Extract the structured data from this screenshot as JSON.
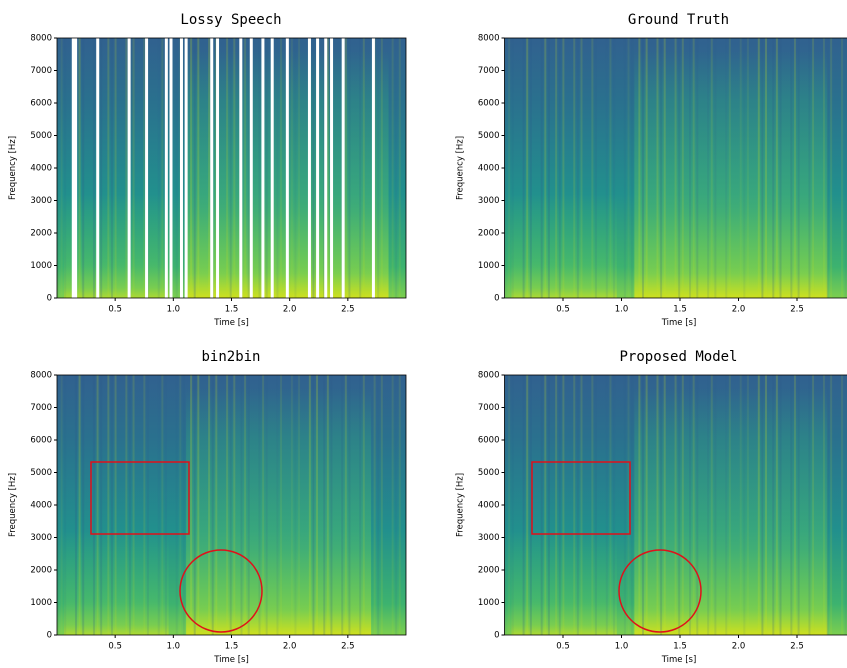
{
  "chart_data": [
    {
      "type": "spectrogram",
      "title": "Lossy Speech",
      "x_label": "Time [s]",
      "y_label": "Frequency [Hz]",
      "xlim": [
        0,
        3
      ],
      "ylim": [
        0,
        8000
      ],
      "xticks": [
        0.5,
        {
          "value": 1,
          "label": "1.0"
        },
        1.5,
        {
          "value": 2,
          "label": "2.0"
        },
        2.5
      ],
      "yticks": [
        0,
        1000,
        2000,
        3000,
        4000,
        5000,
        6000,
        7000,
        8000
      ],
      "lost_frames": [
        0.14,
        0.16,
        0.35,
        0.62,
        0.77,
        0.94,
        0.98,
        1.07,
        1.11,
        1.33,
        1.38,
        1.58,
        1.67,
        1.77,
        1.85,
        1.98,
        2.17,
        2.24,
        2.31,
        2.36,
        2.46,
        2.72
      ]
    },
    {
      "type": "spectrogram",
      "title": "Ground Truth",
      "x_label": "Time [s]",
      "y_label": "Frequency [Hz]",
      "xlim": [
        0,
        3
      ],
      "ylim": [
        0,
        8000
      ],
      "xticks": [
        0.5,
        {
          "value": 1,
          "label": "1.0"
        },
        1.5,
        {
          "value": 2,
          "label": "2.0"
        },
        2.5
      ],
      "yticks": [
        0,
        1000,
        2000,
        3000,
        4000,
        5000,
        6000,
        7000,
        8000
      ]
    },
    {
      "type": "spectrogram",
      "title": "bin2bin",
      "x_label": "Time [s]",
      "y_label": "Frequency [Hz]",
      "xlim": [
        0,
        3
      ],
      "ylim": [
        0,
        8000
      ],
      "xticks": [
        0.5,
        {
          "value": 1,
          "label": "1.0"
        },
        1.5,
        {
          "value": 2,
          "label": "2.0"
        },
        2.5
      ],
      "yticks": [
        0,
        1000,
        2000,
        3000,
        4000,
        5000,
        6000,
        7000,
        8000
      ]
    },
    {
      "type": "spectrogram",
      "title": "Proposed Model",
      "x_label": "Time [s]",
      "y_label": "Frequency [Hz]",
      "xlim": [
        0,
        3
      ],
      "ylim": [
        0,
        8000
      ],
      "xticks": [
        0.5,
        {
          "value": 1,
          "label": "1.0"
        },
        1.5,
        {
          "value": 2,
          "label": "2.0"
        },
        2.5
      ],
      "yticks": [
        0,
        1000,
        2000,
        3000,
        4000,
        5000,
        6000,
        7000,
        8000
      ]
    }
  ]
}
